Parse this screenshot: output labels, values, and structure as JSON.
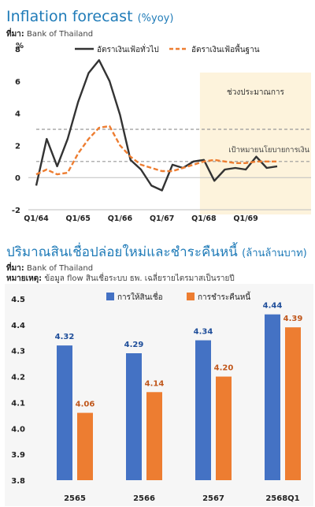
{
  "chart_data": [
    {
      "type": "line",
      "title": "Inflation forecast",
      "title_unit": "(%yoy)",
      "source_label": "ที่มา:",
      "source": "Bank of Thailand",
      "ylabel": "%",
      "ylim": [
        -2,
        8
      ],
      "yticks": [
        "-2",
        "0",
        "2",
        "4",
        "6",
        "8"
      ],
      "x_tick_labels": [
        "Q1/64",
        "Q1/65",
        "Q1/66",
        "Q1/67",
        "Q1/68",
        "Q1/69"
      ],
      "forecast_label": "ช่วงประมาณการ",
      "target_label": "เป้าหมายนโยบายการเงิน",
      "target_band": [
        1,
        3
      ],
      "series": [
        {
          "name": "อัตราเงินเฟ้อทั่วไป",
          "color": "#333333",
          "style": "solid",
          "x": [
            "01/64",
            "02/64",
            "03/64",
            "04/64",
            "01/65",
            "02/65",
            "03/65",
            "04/65",
            "01/66",
            "02/66",
            "03/66",
            "04/66",
            "01/67",
            "02/67",
            "03/67",
            "04/67",
            "01/68",
            "02/68",
            "03/68",
            "04/68",
            "01/69",
            "02/69",
            "03/69",
            "04/69"
          ],
          "values": [
            -0.5,
            2.4,
            0.7,
            2.4,
            4.7,
            6.5,
            7.3,
            6.0,
            3.9,
            1.1,
            0.5,
            -0.5,
            -0.8,
            0.8,
            0.6,
            1.0,
            1.1,
            -0.2,
            0.5,
            0.6,
            0.5,
            1.3,
            0.6,
            0.7
          ]
        },
        {
          "name": "อัตราเงินเฟ้อพื้นฐาน",
          "color": "#ed7d31",
          "style": "dashed",
          "x": [
            "01/64",
            "02/64",
            "03/64",
            "04/64",
            "01/65",
            "02/65",
            "03/65",
            "04/65",
            "01/66",
            "02/66",
            "03/66",
            "04/66",
            "01/67",
            "02/67",
            "03/67",
            "04/67",
            "01/68",
            "02/68",
            "03/68",
            "04/68",
            "01/69",
            "02/69",
            "03/69",
            "04/69"
          ],
          "values": [
            0.2,
            0.5,
            0.2,
            0.3,
            1.5,
            2.4,
            3.1,
            3.2,
            2.0,
            1.3,
            0.8,
            0.6,
            0.4,
            0.4,
            0.6,
            0.8,
            1.0,
            1.1,
            1.0,
            0.9,
            0.9,
            1.0,
            1.0,
            1.0
          ]
        }
      ]
    },
    {
      "type": "bar",
      "title": "ปริมาณสินเชื่อปล่อยใหม่และชำระคืนหนี้",
      "title_unit": "(ล้านล้านบาท)",
      "source_label": "ที่มา:",
      "source": "Bank of Thailand",
      "note_label": "หมายเหตุ:",
      "note": "ข้อมูล flow สินเชื่อระบบ ธพ. เฉลี่ยรายไตรมาสเป็นรายปี",
      "categories": [
        "2565",
        "2566",
        "2567",
        "2568Q1"
      ],
      "ylim": [
        3.8,
        4.5
      ],
      "yticks": [
        "3.8",
        "3.9",
        "4.0",
        "4.1",
        "4.2",
        "4.3",
        "4.4",
        "4.5"
      ],
      "series": [
        {
          "name": "การให้สินเชื่อ",
          "color": "#4472c4",
          "values": [
            4.32,
            4.29,
            4.34,
            4.44
          ]
        },
        {
          "name": "การชำระคืนหนี้",
          "color": "#ed7d31",
          "values": [
            4.06,
            4.14,
            4.2,
            4.39
          ]
        }
      ]
    }
  ]
}
